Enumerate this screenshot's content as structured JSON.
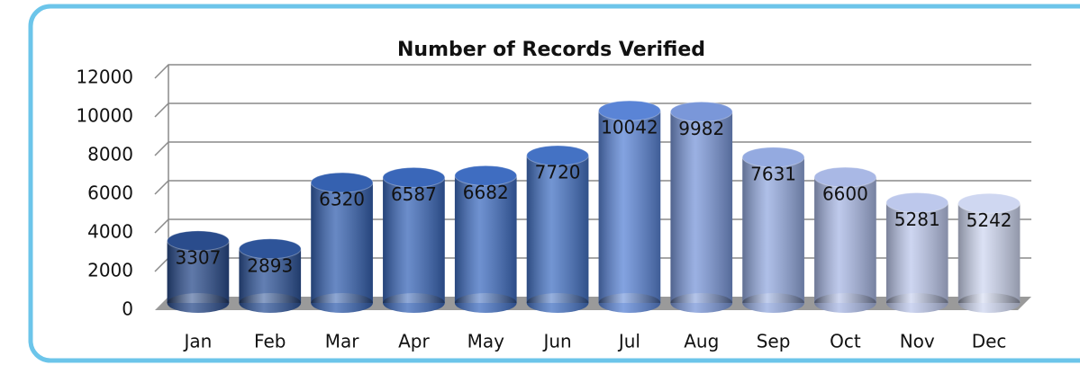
{
  "chart_data": {
    "type": "bar",
    "title": "Number of Records Verified",
    "categories": [
      "Jan",
      "Feb",
      "Mar",
      "Apr",
      "May",
      "Jun",
      "Jul",
      "Aug",
      "Sep",
      "Oct",
      "Nov",
      "Dec"
    ],
    "values": [
      3307,
      2893,
      6320,
      6587,
      6682,
      7720,
      10042,
      9982,
      7631,
      6600,
      5281,
      5242
    ],
    "colors": [
      "#2a4c8c",
      "#2e5499",
      "#3561b0",
      "#3a67b9",
      "#3f6dc1",
      "#4472c4",
      "#5a84d6",
      "#7a97d9",
      "#94aae0",
      "#a9b8e5",
      "#bdc8ec",
      "#cfd7f1"
    ],
    "ylim": [
      0,
      12000
    ],
    "yticks": [
      0,
      2000,
      4000,
      6000,
      8000,
      10000,
      12000
    ],
    "grid": true
  }
}
